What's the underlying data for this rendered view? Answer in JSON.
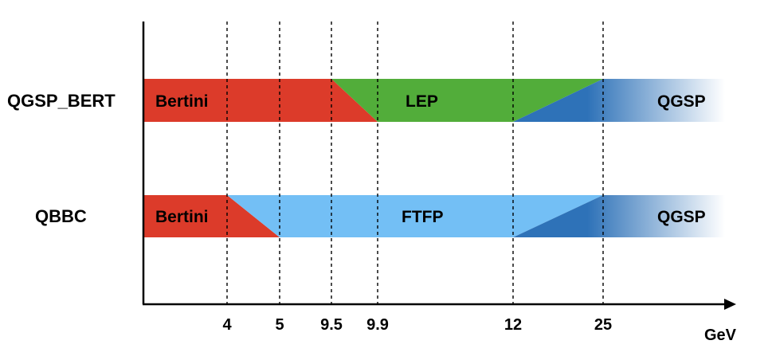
{
  "diagram": {
    "unit_label": "GeV",
    "tick_labels": [
      "4",
      "5",
      "9.5",
      "9.9",
      "12",
      "25"
    ],
    "colors": {
      "bertini": "#dc3b2a",
      "lep": "#52ad3a",
      "ftfp": "#73bff5",
      "qgsp": "#2e72b8"
    },
    "rows": [
      {
        "name": "QGSP_BERT",
        "bands": [
          {
            "label": "Bertini",
            "model": "bertini",
            "ramp_down_gev": [
              9.5,
              9.9
            ]
          },
          {
            "label": "LEP",
            "model": "lep",
            "ramp_up_gev": [
              9.5,
              9.9
            ],
            "ramp_down_gev": [
              12,
              25
            ]
          },
          {
            "label": "QGSP",
            "model": "qgsp",
            "ramp_up_gev": [
              12,
              25
            ]
          }
        ]
      },
      {
        "name": "QBBC",
        "bands": [
          {
            "label": "Bertini",
            "model": "bertini",
            "ramp_down_gev": [
              4,
              5
            ]
          },
          {
            "label": "FTFP",
            "model": "ftfp",
            "ramp_up_gev": [
              4,
              5
            ],
            "ramp_down_gev": [
              12,
              25
            ]
          },
          {
            "label": "QGSP",
            "model": "qgsp",
            "ramp_up_gev": [
              12,
              25
            ]
          }
        ]
      }
    ]
  }
}
